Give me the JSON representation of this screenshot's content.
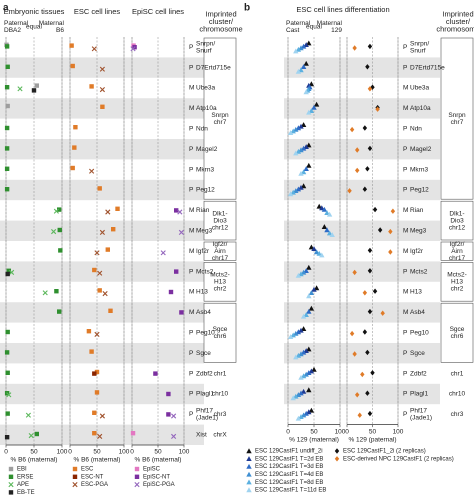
{
  "panel_a": {
    "label": "a",
    "left_header": [
      "Paternal",
      "DBA2"
    ],
    "center_header": "equal",
    "right_header": [
      "Maternal",
      "B6"
    ],
    "cluster_header": [
      "Imprinted",
      "cluster/",
      "chromosome"
    ],
    "clusters": [
      {
        "label": [
          "Snrpn",
          "chr7"
        ],
        "genes": [
          {
            "parent": "P",
            "name": [
              "Snrpn/",
              "Snurf"
            ]
          },
          {
            "parent": "P",
            "name": "D7Ertd715e"
          },
          {
            "parent": "M",
            "name": "Ube3a"
          },
          {
            "parent": "M",
            "name": "Atp10a"
          },
          {
            "parent": "P",
            "name": "Ndn"
          },
          {
            "parent": "P",
            "name": "Magel2"
          },
          {
            "parent": "P",
            "name": "Mkrn3"
          },
          {
            "parent": "P",
            "name": "Peg12"
          }
        ]
      },
      {
        "label": [
          "Dlk1-",
          "Dio3",
          "chr12"
        ],
        "genes": [
          {
            "parent": "M",
            "name": "Rian"
          },
          {
            "parent": "M",
            "name": "Meg3"
          }
        ]
      },
      {
        "label": [
          "Igf2r/",
          "Airn",
          "chr17"
        ],
        "genes": [
          {
            "parent": "M",
            "name": "Igf2r"
          }
        ]
      },
      {
        "label": [
          "Mcts2-",
          "H13",
          "chr2"
        ],
        "genes": [
          {
            "parent": "P",
            "name": "Mcts2"
          },
          {
            "parent": "M",
            "name": "H13"
          }
        ]
      },
      {
        "label": [
          "Sgce",
          "chr6"
        ],
        "genes": [
          {
            "parent": "M",
            "name": "Asb4"
          },
          {
            "parent": "P",
            "name": "Peg10"
          },
          {
            "parent": "P",
            "name": "Sgce"
          }
        ]
      },
      {
        "label": "chr1",
        "genes": [
          {
            "parent": "P",
            "name": "Zdbf2"
          }
        ]
      },
      {
        "label": "chr10",
        "genes": [
          {
            "parent": "P",
            "name": "Plagl1"
          }
        ]
      },
      {
        "label": "chr3",
        "genes": [
          {
            "parent": "P",
            "name": [
              "Phf17",
              "(Jade1)"
            ]
          }
        ]
      },
      {
        "label": "chrX",
        "genes": [
          {
            "parent": "",
            "name": "Xist"
          }
        ]
      }
    ]
  },
  "panel_b": {
    "label": "b",
    "title": "ESC cell lines differentiation",
    "left_header": [
      "Paternal",
      "Cast"
    ],
    "center_header": "equal",
    "right_header": [
      "Maternal",
      "129"
    ],
    "cluster_header": [
      "Imprinted",
      "cluster/",
      "chromosome"
    ],
    "clusters": [
      {
        "label": [
          "Snrpn",
          "chr7"
        ],
        "genes": [
          {
            "parent": "P",
            "name": [
              "Snrpn/",
              "Snurf"
            ]
          },
          {
            "parent": "P",
            "name": "D7Ertd715e"
          },
          {
            "parent": "M",
            "name": "Ube3a"
          },
          {
            "parent": "M",
            "name": "Atp10a"
          },
          {
            "parent": "P",
            "name": "Ndn"
          },
          {
            "parent": "P",
            "name": "Magel2"
          },
          {
            "parent": "P",
            "name": "Mkrn3"
          },
          {
            "parent": "P",
            "name": "Peg12"
          }
        ]
      },
      {
        "label": [
          "Dlk1-",
          "Dio3",
          "chr12"
        ],
        "genes": [
          {
            "parent": "M",
            "name": "Rian"
          },
          {
            "parent": "M",
            "name": "Meg3"
          }
        ]
      },
      {
        "label": [
          "Igf2r/",
          "Airn",
          "chr17"
        ],
        "genes": [
          {
            "parent": "M",
            "name": "Igf2r"
          }
        ]
      },
      {
        "label": [
          "Mcts2-",
          "H13",
          "chr2"
        ],
        "genes": [
          {
            "parent": "P",
            "name": "Mcts2"
          },
          {
            "parent": "M",
            "name": "H13"
          }
        ]
      },
      {
        "label": [
          "Sgce",
          "chr6"
        ],
        "genes": [
          {
            "parent": "M",
            "name": "Asb4"
          },
          {
            "parent": "P",
            "name": "Peg10"
          },
          {
            "parent": "P",
            "name": "Sgce"
          }
        ]
      },
      {
        "label": "chr1",
        "genes": [
          {
            "parent": "P",
            "name": "Zdbf2"
          }
        ]
      },
      {
        "label": "chr10",
        "genes": [
          {
            "parent": "P",
            "name": "Plagl1"
          }
        ]
      },
      {
        "label": "chr3",
        "genes": [
          {
            "parent": "P",
            "name": [
              "Phf17",
              "(Jade1)"
            ]
          }
        ]
      }
    ]
  },
  "chart_data": [
    {
      "type": "scatter",
      "title": "Embryonic tissues",
      "xlabel": "% B6 (maternal)",
      "xlim": [
        0,
        100
      ],
      "xticks": [
        0,
        50,
        100
      ],
      "grid": true,
      "series": [
        {
          "name": "EBI",
          "color": "#9e9e9e",
          "marker": "square",
          "values": [
            1,
            null,
            55,
            3,
            null,
            null,
            null,
            null,
            null,
            null,
            null,
            null,
            null,
            null,
            null,
            null,
            null,
            null,
            null,
            null
          ]
        },
        {
          "name": "ERSE",
          "color": "#2f8f2f",
          "marker": "square",
          "values": [
            2,
            3,
            2,
            null,
            2,
            2,
            2,
            2,
            95,
            96,
            97,
            5,
            90,
            95,
            3,
            2,
            3,
            2,
            3,
            55
          ]
        },
        {
          "name": "APE",
          "color": "#5cb85c",
          "marker": "x",
          "values": [
            null,
            null,
            25,
            null,
            null,
            null,
            null,
            null,
            90,
            85,
            null,
            10,
            70,
            null,
            null,
            null,
            null,
            5,
            40,
            45
          ]
        },
        {
          "name": "EB-TE",
          "color": "#222222",
          "marker": "square",
          "values": [
            null,
            null,
            50,
            null,
            null,
            null,
            null,
            null,
            null,
            null,
            null,
            3,
            null,
            null,
            null,
            null,
            null,
            null,
            null,
            2
          ]
        }
      ]
    },
    {
      "type": "scatter",
      "title": "ESC cell lines",
      "xlabel": "% B6 (maternal)",
      "xlim": [
        0,
        100
      ],
      "xticks": [
        0,
        50,
        100
      ],
      "grid": true,
      "series": [
        {
          "name": "ESC",
          "color": "#e07b28",
          "marker": "square",
          "values": [
            3,
            5,
            40,
            60,
            10,
            8,
            5,
            55,
            88,
            80,
            70,
            45,
            55,
            75,
            35,
            40,
            50,
            50,
            45,
            45
          ]
        },
        {
          "name": "ESC-NT",
          "color": "#8b2500",
          "marker": "square",
          "values": [
            null,
            null,
            null,
            null,
            null,
            null,
            null,
            null,
            null,
            null,
            null,
            null,
            null,
            null,
            null,
            null,
            45,
            null,
            null,
            null
          ]
        },
        {
          "name": "ESC-PGA",
          "color": "#a0522d",
          "marker": "x",
          "values": [
            45,
            60,
            60,
            null,
            null,
            null,
            40,
            null,
            70,
            60,
            50,
            55,
            65,
            null,
            50,
            null,
            null,
            null,
            60,
            55
          ]
        }
      ]
    },
    {
      "type": "scatter",
      "title": "EpiSC cell lines",
      "xlabel": "% B6 (maternal)",
      "xlim": [
        0,
        100
      ],
      "xticks": [
        0,
        50,
        100
      ],
      "grid": true,
      "series": [
        {
          "name": "EpiSC",
          "color": "#e377c2",
          "marker": "square",
          "values": [
            3,
            null,
            null,
            null,
            null,
            null,
            null,
            null,
            null,
            null,
            null,
            null,
            null,
            null,
            null,
            null,
            null,
            null,
            null,
            2
          ]
        },
        {
          "name": "EpiSC-NT",
          "color": "#7b2fa0",
          "marker": "square",
          "values": [
            5,
            null,
            null,
            null,
            null,
            null,
            null,
            null,
            85,
            null,
            null,
            85,
            75,
            95,
            null,
            null,
            45,
            70,
            70,
            null
          ]
        },
        {
          "name": "EpiSC-PGA",
          "color": "#9467bd",
          "marker": "x",
          "values": [
            2,
            null,
            null,
            null,
            null,
            null,
            null,
            null,
            92,
            95,
            60,
            null,
            null,
            null,
            null,
            null,
            null,
            null,
            80,
            80
          ]
        }
      ]
    },
    {
      "type": "scatter",
      "xlabel": "% 129 (maternal)",
      "xlim": [
        0,
        100
      ],
      "xticks": [
        0,
        50,
        100
      ],
      "grid": true,
      "series": [
        {
          "name": "ESC 129CastF1 undiff_2i",
          "color": "#111111",
          "marker": "triangle",
          "values": [
            40,
            35,
            45,
            55,
            30,
            40,
            40,
            30,
            60,
            70,
            45,
            40,
            55,
            45,
            30,
            40,
            50,
            40,
            45
          ]
        },
        {
          "name": "ESC 129CastF1 T=2d EB",
          "color": "#1f3a93",
          "marker": "triangle",
          "values": [
            35,
            null,
            40,
            null,
            25,
            35,
            null,
            25,
            65,
            null,
            50,
            null,
            50,
            null,
            25,
            35,
            45,
            30,
            40
          ]
        },
        {
          "name": "ESC 129CastF1 T=3d EB",
          "color": "#2e6bc6",
          "marker": "triangle",
          "values": [
            30,
            30,
            42,
            50,
            20,
            30,
            35,
            20,
            70,
            75,
            null,
            35,
            null,
            40,
            20,
            30,
            40,
            25,
            35
          ]
        },
        {
          "name": "ESC 129CastF1 T=4d EB",
          "color": "#3f8fd2",
          "marker": "triangle",
          "values": [
            25,
            null,
            40,
            null,
            15,
            25,
            null,
            15,
            null,
            null,
            55,
            30,
            45,
            null,
            15,
            25,
            35,
            20,
            30
          ]
        },
        {
          "name": "ESC 129CastF1 T=8d EB",
          "color": "#5bb0e0",
          "marker": "triangle",
          "values": [
            20,
            25,
            38,
            45,
            10,
            20,
            30,
            10,
            75,
            80,
            60,
            25,
            null,
            35,
            10,
            20,
            30,
            15,
            25
          ]
        },
        {
          "name": "ESC 129CastF1 T=11d EB",
          "color": "#9fd3f0",
          "marker": "triangle",
          "values": [
            15,
            20,
            35,
            40,
            5,
            15,
            25,
            5,
            80,
            85,
            65,
            20,
            40,
            30,
            5,
            15,
            25,
            10,
            20
          ]
        }
      ]
    },
    {
      "type": "scatter",
      "xlabel": "% 129 (paternal)",
      "xlim": [
        0,
        100
      ],
      "xticks": [
        0,
        50,
        100
      ],
      "grid": true,
      "series": [
        {
          "name": "ESC 129CastF1_2i (2 replicas)",
          "color": "#111111",
          "marker": "diamond",
          "values": [
            45,
            40,
            50,
            60,
            35,
            45,
            40,
            35,
            55,
            65,
            45,
            45,
            55,
            45,
            35,
            40,
            50,
            40,
            45
          ]
        },
        {
          "name": "ESC-derived NPC 129CastF1 (2 replicas)",
          "color": "#e07b28",
          "marker": "diamond",
          "values": [
            15,
            null,
            45,
            60,
            10,
            20,
            20,
            5,
            90,
            85,
            85,
            15,
            35,
            70,
            10,
            15,
            30,
            20,
            25
          ]
        }
      ]
    }
  ]
}
